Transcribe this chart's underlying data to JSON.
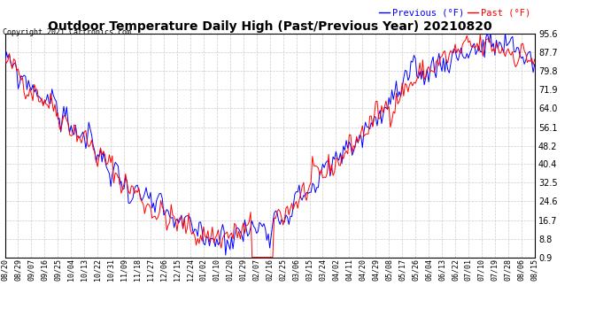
{
  "title": "Outdoor Temperature Daily High (Past/Previous Year) 20210820",
  "copyright": "Copyright 2021 Cartronics.com",
  "legend_prev": "Previous (°F)",
  "legend_past": "Past (°F)",
  "color_prev": "blue",
  "color_past": "red",
  "background_color": "#ffffff",
  "grid_color": "#aaaaaa",
  "yticks": [
    0.9,
    8.8,
    16.7,
    24.6,
    32.5,
    40.4,
    48.2,
    56.1,
    64.0,
    71.9,
    79.8,
    87.7,
    95.6
  ],
  "ylim": [
    0.9,
    95.6
  ],
  "xtick_labels": [
    "08/20",
    "08/29",
    "09/07",
    "09/16",
    "09/25",
    "10/04",
    "10/13",
    "10/22",
    "10/31",
    "11/09",
    "11/18",
    "11/27",
    "12/06",
    "12/15",
    "12/24",
    "01/02",
    "01/10",
    "01/20",
    "01/29",
    "02/07",
    "02/16",
    "02/25",
    "03/06",
    "03/15",
    "03/24",
    "04/02",
    "04/11",
    "04/20",
    "04/29",
    "05/08",
    "05/17",
    "05/26",
    "06/04",
    "06/13",
    "06/22",
    "07/01",
    "07/10",
    "07/19",
    "07/28",
    "08/06",
    "08/15"
  ],
  "n_points": 361
}
